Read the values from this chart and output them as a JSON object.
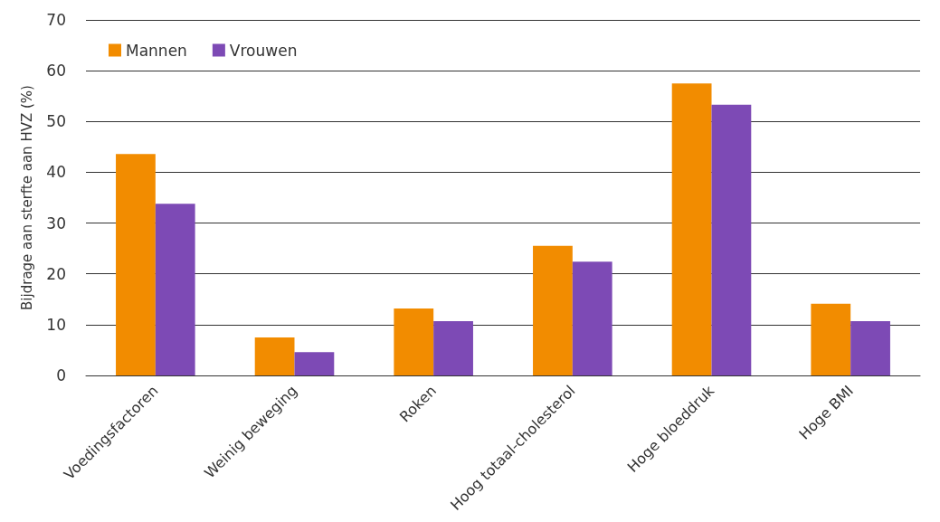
{
  "chart_data": {
    "type": "bar",
    "ylabel": "Bijdrage aan sterfte aan HVZ (%)",
    "categories": [
      "Voedingsfactoren",
      "Weinig beweging",
      "Roken",
      "Hoog totaal-cholesterol",
      "Hoge bloeddruk",
      "Hoge BMI"
    ],
    "series": [
      {
        "name": "Mannen",
        "color": "#f28c00",
        "values": [
          43.6,
          7.5,
          13.2,
          25.5,
          57.5,
          14.1
        ]
      },
      {
        "name": "Vrouwen",
        "color": "#7d4ab5",
        "values": [
          33.8,
          4.6,
          10.7,
          22.4,
          53.3,
          10.7
        ]
      }
    ],
    "ylim": [
      0,
      70
    ],
    "yticks": [
      0,
      10,
      20,
      30,
      40,
      50,
      60,
      70
    ],
    "grid": "y",
    "legend": "top left"
  }
}
